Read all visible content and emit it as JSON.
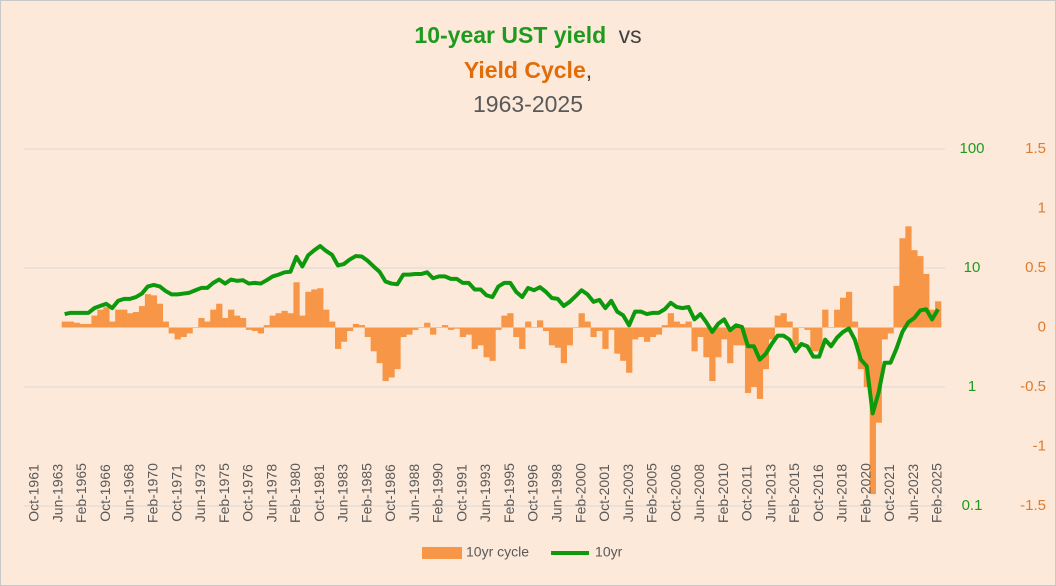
{
  "chart_data": {
    "type": "bar_line",
    "title": [
      [
        "10-year UST yield",
        "vs"
      ],
      [
        "Yield Cycle",
        ","
      ],
      [
        "1963-2025"
      ]
    ],
    "categories": [
      "Oct-1961",
      null,
      null,
      null,
      "Jun-1963",
      null,
      null,
      null,
      "Feb-1965",
      null,
      null,
      null,
      "Oct-1966",
      null,
      null,
      null,
      "Jun-1968",
      null,
      null,
      null,
      "Feb-1970",
      null,
      null,
      null,
      "Oct-1971",
      null,
      null,
      null,
      "Jun-1973",
      null,
      null,
      null,
      "Feb-1975",
      null,
      null,
      null,
      "Oct-1976",
      null,
      null,
      null,
      "Jun-1978",
      null,
      null,
      null,
      "Feb-1980",
      null,
      null,
      null,
      "Oct-1981",
      null,
      null,
      null,
      "Jun-1983",
      null,
      null,
      null,
      "Feb-1985",
      null,
      null,
      null,
      "Oct-1986",
      null,
      null,
      null,
      "Jun-1988",
      null,
      null,
      null,
      "Feb-1990",
      null,
      null,
      null,
      "Oct-1991",
      null,
      null,
      null,
      "Jun-1993",
      null,
      null,
      null,
      "Feb-1995",
      null,
      null,
      null,
      "Oct-1996",
      null,
      null,
      null,
      "Jun-1998",
      null,
      null,
      null,
      "Feb-2000",
      null,
      null,
      null,
      "Oct-2001",
      null,
      null,
      null,
      "Jun-2003",
      null,
      null,
      null,
      "Feb-2005",
      null,
      null,
      null,
      "Oct-2006",
      null,
      null,
      null,
      "Jun-2008",
      null,
      null,
      null,
      "Feb-2010",
      null,
      null,
      null,
      "Oct-2011",
      null,
      null,
      null,
      "Jun-2013",
      null,
      null,
      null,
      "Feb-2015",
      null,
      null,
      null,
      "Oct-2016",
      null,
      null,
      null,
      "Jun-2018",
      null,
      null,
      null,
      "Feb-2020",
      null,
      null,
      null,
      "Oct-2021",
      null,
      null,
      null,
      "Jun-2023",
      null,
      null,
      null,
      "Feb-2025"
    ],
    "series": [
      {
        "name": "10yr cycle",
        "color": "#f79646",
        "kind": "bar",
        "axis": "y2",
        "values": [
          null,
          null,
          null,
          null,
          null,
          0.05,
          0.05,
          0.04,
          0.03,
          0.03,
          0.1,
          0.15,
          0.17,
          0.05,
          0.15,
          0.15,
          0.12,
          0.13,
          0.18,
          0.28,
          0.27,
          0.2,
          0.05,
          -0.05,
          -0.1,
          -0.08,
          -0.05,
          0.0,
          0.08,
          0.05,
          0.15,
          0.2,
          0.08,
          0.15,
          0.1,
          0.08,
          -0.02,
          -0.03,
          -0.05,
          0.02,
          0.1,
          0.12,
          0.14,
          0.12,
          0.38,
          0.1,
          0.3,
          0.32,
          0.33,
          0.15,
          0.05,
          -0.18,
          -0.12,
          -0.03,
          0.03,
          0.02,
          -0.08,
          -0.2,
          -0.3,
          -0.45,
          -0.42,
          -0.35,
          -0.08,
          -0.06,
          -0.02,
          0.0,
          0.04,
          -0.06,
          0.0,
          0.02,
          -0.02,
          -0.01,
          -0.08,
          -0.06,
          -0.18,
          -0.15,
          -0.25,
          -0.28,
          -0.02,
          0.1,
          0.12,
          -0.08,
          -0.18,
          0.05,
          0.0,
          0.06,
          -0.03,
          -0.15,
          -0.17,
          -0.3,
          -0.15,
          0.0,
          0.12,
          0.05,
          -0.08,
          -0.03,
          -0.18,
          -0.02,
          -0.22,
          -0.28,
          -0.38,
          -0.1,
          -0.08,
          -0.12,
          -0.08,
          -0.06,
          0.02,
          0.12,
          0.05,
          0.03,
          0.05,
          -0.2,
          -0.08,
          -0.25,
          -0.45,
          -0.25,
          -0.1,
          -0.3,
          -0.15,
          -0.15,
          -0.55,
          -0.5,
          -0.6,
          -0.35,
          -0.1,
          0.1,
          0.12,
          0.05,
          -0.15,
          0.0,
          -0.02,
          -0.2,
          -0.2,
          0.15,
          0.0,
          0.15,
          0.25,
          0.3,
          0.05,
          -0.35,
          -0.5,
          -1.4,
          -0.8,
          -0.1,
          -0.05,
          0.35,
          0.75,
          0.85,
          0.65,
          0.6,
          0.45,
          0.15,
          0.22
        ]
      },
      {
        "name": "10yr",
        "color": "#0c9a0c",
        "kind": "line",
        "axis": "y",
        "values": [
          null,
          null,
          null,
          null,
          null,
          4.1,
          4.2,
          4.2,
          4.2,
          4.2,
          4.6,
          4.8,
          5.0,
          4.6,
          5.3,
          5.5,
          5.5,
          5.7,
          6.1,
          7.0,
          7.2,
          7.0,
          6.4,
          6.0,
          6.0,
          6.1,
          6.2,
          6.5,
          6.8,
          6.8,
          7.5,
          8.0,
          7.4,
          8.0,
          7.8,
          7.9,
          7.4,
          7.5,
          7.4,
          7.9,
          8.5,
          8.8,
          9.2,
          9.3,
          12.4,
          10.3,
          12.8,
          14.1,
          15.3,
          13.9,
          12.9,
          10.5,
          10.8,
          11.8,
          12.6,
          12.5,
          11.5,
          10.3,
          9.3,
          7.7,
          7.4,
          7.3,
          8.8,
          8.8,
          8.9,
          8.9,
          9.2,
          8.2,
          8.5,
          8.5,
          8.1,
          8.1,
          7.5,
          7.5,
          6.6,
          6.6,
          5.9,
          5.7,
          7.0,
          7.5,
          7.5,
          6.3,
          5.7,
          6.8,
          6.5,
          6.9,
          6.3,
          5.6,
          5.5,
          4.8,
          5.2,
          5.8,
          6.5,
          6.0,
          5.2,
          5.4,
          4.6,
          5.3,
          4.3,
          4.0,
          3.3,
          4.3,
          4.3,
          4.1,
          4.2,
          4.2,
          4.5,
          5.1,
          4.7,
          4.6,
          4.7,
          3.7,
          4.1,
          3.5,
          2.9,
          3.4,
          3.7,
          3.0,
          3.3,
          3.2,
          2.2,
          2.2,
          1.7,
          1.9,
          2.3,
          2.7,
          2.7,
          2.5,
          2.0,
          2.3,
          2.2,
          1.8,
          1.8,
          2.5,
          2.2,
          2.6,
          2.9,
          3.1,
          2.5,
          1.7,
          1.5,
          0.6,
          0.9,
          1.6,
          1.6,
          2.1,
          2.9,
          3.5,
          3.8,
          4.4,
          4.5,
          3.7,
          4.5
        ]
      }
    ],
    "ylim": [
      0.1,
      100
    ],
    "yticks": [
      0.1,
      1,
      10,
      100
    ],
    "ylog": true,
    "ycolor": "#1e9b1e",
    "y2lim": [
      -1.5,
      1.5
    ],
    "y2ticks": [
      -1.5,
      -1,
      -0.5,
      0,
      0.5,
      1,
      1.5
    ],
    "y2color": "#e07b2e",
    "grid": true,
    "legend": "bottom"
  }
}
